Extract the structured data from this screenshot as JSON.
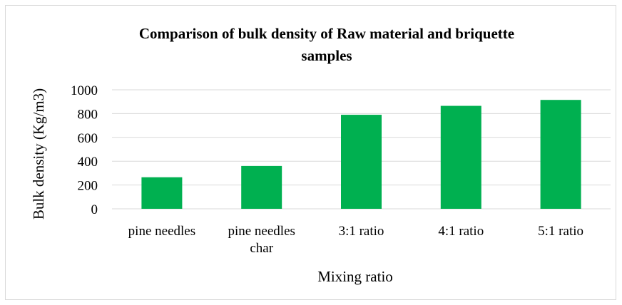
{
  "chart_data": {
    "type": "bar",
    "title_lines": [
      "Comparison of bulk density of Raw material and briquette",
      "samples"
    ],
    "xlabel": "Mixing ratio",
    "ylabel": "Bulk density  (Kg/m3)",
    "categories": [
      [
        "pine needles"
      ],
      [
        "pine needles",
        "char"
      ],
      [
        "3:1 ratio"
      ],
      [
        "4:1 ratio"
      ],
      [
        "5:1 ratio"
      ]
    ],
    "values": [
      265,
      360,
      790,
      865,
      915
    ],
    "ylim": [
      0,
      1000
    ],
    "yticks": [
      0,
      200,
      400,
      600,
      800,
      1000
    ],
    "grid": true,
    "bar_color": "#00b050",
    "grid_color": "#d9d9d9"
  }
}
